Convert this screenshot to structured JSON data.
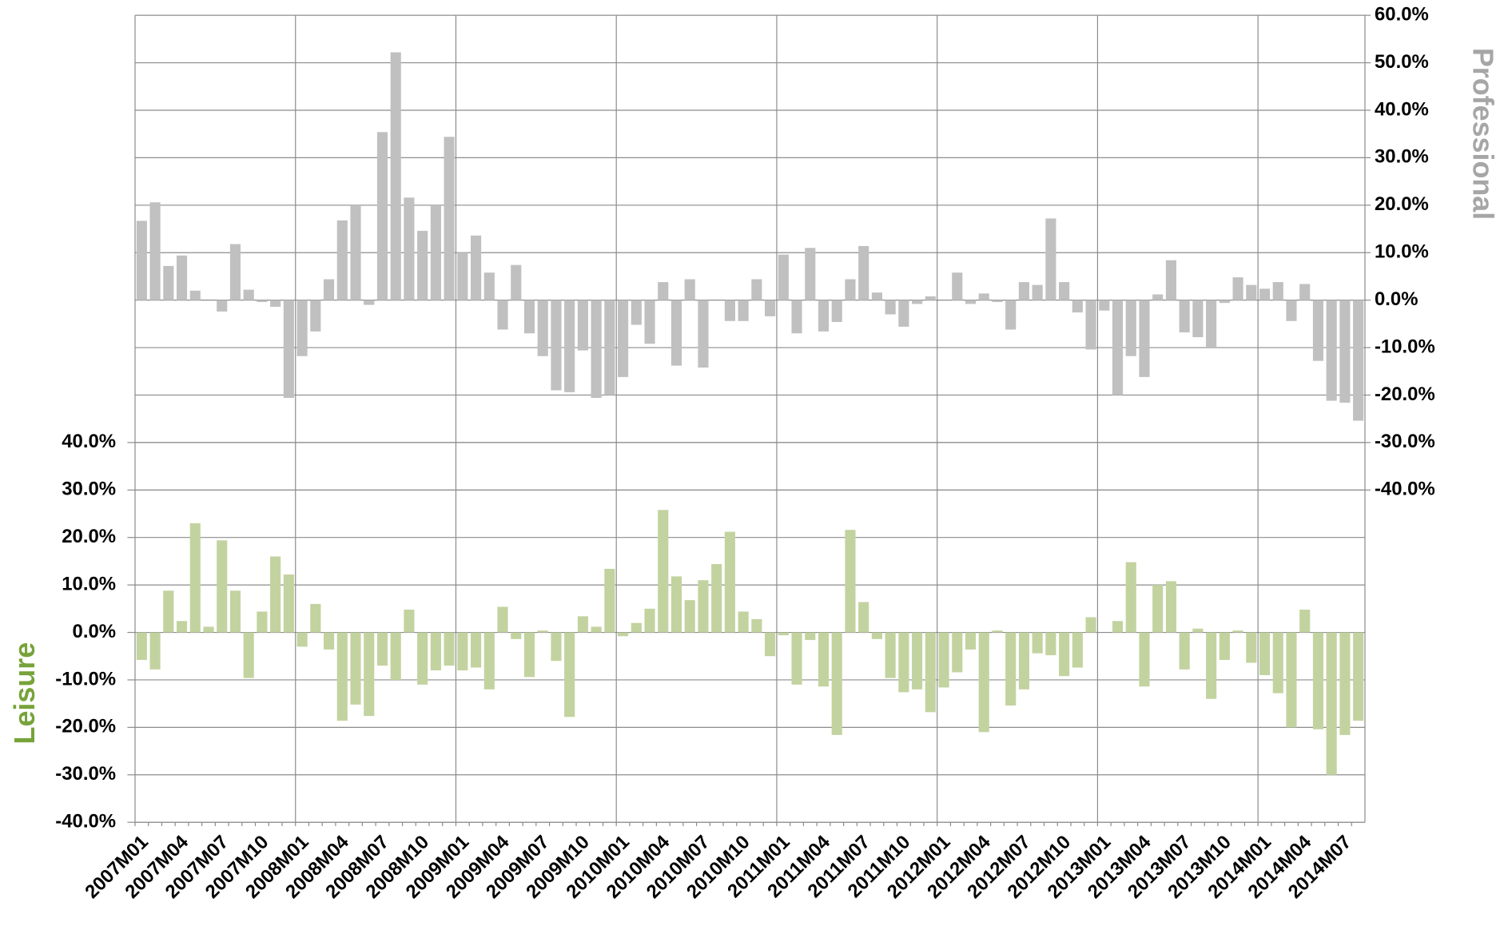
{
  "chart_data": {
    "type": "bar",
    "categories": [
      "2007M01",
      null,
      null,
      "2007M04",
      null,
      null,
      "2007M07",
      null,
      null,
      "2007M10",
      null,
      null,
      "2008M01",
      null,
      null,
      "2008M04",
      null,
      null,
      "2008M07",
      null,
      null,
      "2008M10",
      null,
      null,
      "2009M01",
      null,
      null,
      "2009M04",
      null,
      null,
      "2009M07",
      null,
      null,
      "2009M10",
      null,
      null,
      "2010M01",
      null,
      null,
      "2010M04",
      null,
      null,
      "2010M07",
      null,
      null,
      "2010M10",
      null,
      null,
      "2011M01",
      null,
      null,
      "2011M04",
      null,
      null,
      "2011M07",
      null,
      null,
      "2011M10",
      null,
      null,
      "2012M01",
      null,
      null,
      "2012M04",
      null,
      null,
      "2012M07",
      null,
      null,
      "2012M10",
      null,
      null,
      "2013M01",
      null,
      null,
      "2013M04",
      null,
      null,
      "2013M07",
      null,
      null,
      "2013M10",
      null,
      null,
      "2014M01",
      null,
      null,
      "2014M04",
      null,
      null,
      "2014M07",
      null
    ],
    "ylabel": "Leisure",
    "y2label": "Professional",
    "ylim": [
      -40,
      130
    ],
    "yticks": [
      {
        "value": -40,
        "label": "-40.0%"
      },
      {
        "value": -30,
        "label": "-30.0%"
      },
      {
        "value": -20,
        "label": "-20.0%"
      },
      {
        "value": -10,
        "label": "-10.0%"
      },
      {
        "value": 0,
        "label": "0.0%"
      },
      {
        "value": 10,
        "label": "10.0%"
      },
      {
        "value": 20,
        "label": "20.0%"
      },
      {
        "value": 30,
        "label": "30.0%"
      },
      {
        "value": 40,
        "label": "40.0%"
      }
    ],
    "y2lim": [
      -110,
      60
    ],
    "y2ticks": [
      {
        "value": -40,
        "label": "-40.0%"
      },
      {
        "value": -30,
        "label": "-30.0%"
      },
      {
        "value": -20,
        "label": "-20.0%"
      },
      {
        "value": -10,
        "label": "-10.0%"
      },
      {
        "value": 0,
        "label": "0.0%"
      },
      {
        "value": 10,
        "label": "10.0%"
      },
      {
        "value": 20,
        "label": "20.0%"
      },
      {
        "value": 30,
        "label": "30.0%"
      },
      {
        "value": 40,
        "label": "40.0%"
      },
      {
        "value": 50,
        "label": "50.0%"
      },
      {
        "value": 60,
        "label": "60.0%"
      }
    ],
    "grid": true,
    "series": [
      {
        "name": "Professional",
        "color": "#c0c0c0",
        "axis": "y2",
        "values": [
          16.7,
          20.6,
          7.2,
          9.4,
          2,
          0,
          -2.4,
          11.8,
          2.2,
          -0.4,
          -1.4,
          -20.6,
          -11.8,
          -6.6,
          4.4,
          16.8,
          20,
          -1,
          35.4,
          52.2,
          21.6,
          14.6,
          20,
          34.4,
          10,
          13.6,
          5.8,
          -6.2,
          7.4,
          -7,
          -11.8,
          -19,
          -19.4,
          -10.6,
          -20.6,
          -20,
          -16.2,
          -5.2,
          -9.2,
          3.8,
          -13.8,
          4.4,
          -14.2,
          0,
          -4.4,
          -4.4,
          4.4,
          -3.4,
          9.6,
          -7,
          11,
          -6.6,
          -4.6,
          4.4,
          11.4,
          1.6,
          -3,
          -5.6,
          -0.8,
          0.8,
          0,
          5.8,
          -0.8,
          1.4,
          -0.4,
          -6.2,
          3.8,
          3.2,
          17.2,
          3.8,
          -2.6,
          -10.4,
          -2.2,
          -20,
          -11.8,
          -16.2,
          1.2,
          8.4,
          -6.8,
          -7.8,
          -10,
          -0.6,
          4.8,
          3.2,
          2.4,
          3.8,
          -4.4,
          3.4,
          -12.8,
          -21.2,
          -21.6,
          -25.4
        ]
      },
      {
        "name": "Leisure",
        "color": "#c3d3a0",
        "axis": "y",
        "values": [
          -5.8,
          -7.8,
          8.8,
          2.4,
          23,
          1.2,
          19.4,
          8.8,
          -9.6,
          4.4,
          16,
          12.2,
          -3,
          6,
          -3.6,
          -18.6,
          -15.2,
          -17.6,
          -7,
          -10,
          4.8,
          -11,
          -8,
          -7,
          -8,
          -7.4,
          -12,
          5.4,
          -1.4,
          -9.4,
          0.4,
          -6,
          -17.8,
          3.4,
          1.2,
          13.4,
          -0.8,
          2,
          5,
          25.8,
          11.8,
          6.8,
          11,
          14.4,
          21.2,
          4.4,
          2.8,
          -5,
          -0.6,
          -11,
          -1.6,
          -11.4,
          -21.6,
          21.6,
          6.4,
          -1.4,
          -9.6,
          -12.6,
          -12,
          -16.8,
          -11.6,
          -8.4,
          -3.6,
          -21,
          0.4,
          -15.4,
          -12,
          -4.4,
          -4.8,
          -9.2,
          -7.4,
          3.2,
          0,
          2.4,
          14.8,
          -11.4,
          10,
          10.8,
          -7.8,
          0.8,
          -14,
          -5.8,
          0.4,
          -6.4,
          -9,
          -12.8,
          -20,
          4.8,
          -20.4,
          -30,
          -21.6,
          -18.6
        ]
      }
    ]
  }
}
